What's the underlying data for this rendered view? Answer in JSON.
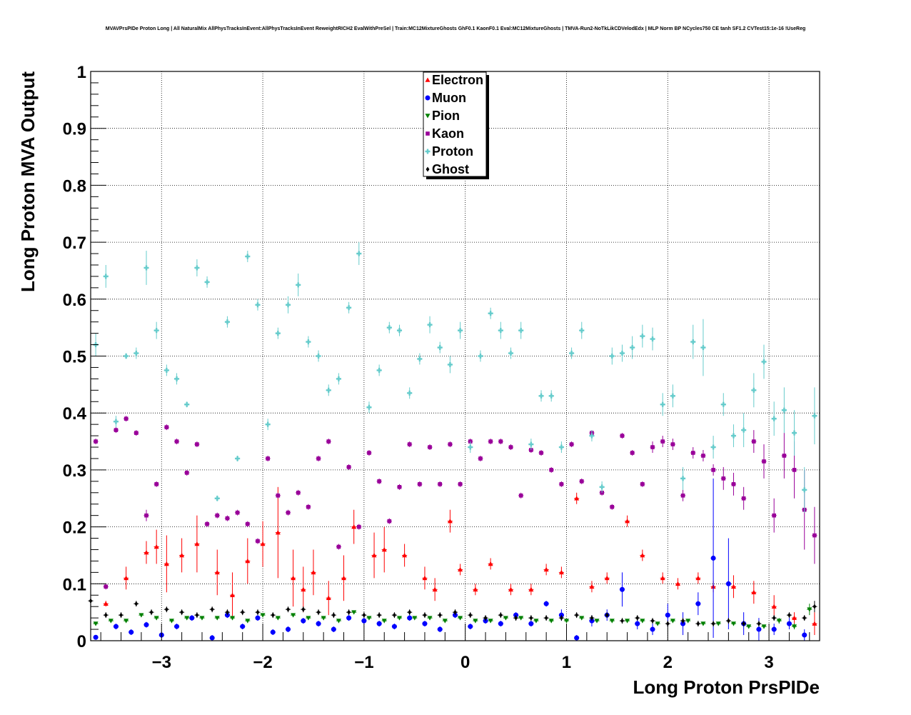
{
  "chart_data": {
    "type": "scatter",
    "title": "MVAVPrsPIDe Proton Long | All NaturalMix AllPhysTracksInEvent:AllPhysTracksInEvent ReweightRICH2 EvalWithPreSel | Train:MC12MixtureGhosts GhF0.1 KaonF0.1 Eval:MC12MixtureGhosts | TMVA-Run2-NoTkLikCDVelodEdx | MLP Norm BP NCycles750 CE tanh SF1.2 CVTest15:1e-16 !UseReg",
    "xlabel": "Long Proton PrsPIDe",
    "ylabel": "Long Proton MVA Output",
    "xlim": [
      -3.7,
      3.5
    ],
    "ylim": [
      0,
      1
    ],
    "grid": true,
    "legend_position": "top-center",
    "x_ticks": [
      -3,
      -2,
      -1,
      0,
      1,
      2,
      3
    ],
    "x_tick_labels": [
      "−3",
      "−2",
      "−1",
      "0",
      "1",
      "2",
      "3"
    ],
    "y_ticks": [
      0,
      0.1,
      0.2,
      0.3,
      0.4,
      0.5,
      0.6,
      0.7,
      0.8,
      0.9,
      1
    ],
    "y_tick_labels": [
      "0",
      "0.1",
      "0.2",
      "0.3",
      "0.4",
      "0.5",
      "0.6",
      "0.7",
      "0.8",
      "0.9",
      "1"
    ],
    "bin_half_width": 0.025,
    "series": [
      {
        "name": "Electron",
        "color": "#ff0000",
        "marker": "triangle-up",
        "x": [
          -3.55,
          -3.35,
          -3.15,
          -3.05,
          -2.95,
          -2.8,
          -2.65,
          -2.45,
          -2.3,
          -2.15,
          -2.0,
          -1.85,
          -1.7,
          -1.6,
          -1.5,
          -1.35,
          -1.2,
          -1.1,
          -0.9,
          -0.8,
          -0.6,
          -0.4,
          -0.3,
          -0.15,
          -0.05,
          0.1,
          0.25,
          0.45,
          0.65,
          0.8,
          0.95,
          1.1,
          1.25,
          1.4,
          1.6,
          1.75,
          1.95,
          2.1,
          2.3,
          2.45,
          2.65,
          2.85,
          3.05,
          3.25,
          3.45
        ],
        "y": [
          0.065,
          0.11,
          0.155,
          0.165,
          0.135,
          0.15,
          0.17,
          0.12,
          0.08,
          0.14,
          0.17,
          0.19,
          0.11,
          0.09,
          0.12,
          0.075,
          0.11,
          0.2,
          0.15,
          0.16,
          0.15,
          0.11,
          0.09,
          0.21,
          0.125,
          0.09,
          0.135,
          0.09,
          0.09,
          0.125,
          0.12,
          0.25,
          0.095,
          0.11,
          0.21,
          0.15,
          0.11,
          0.1,
          0.11,
          0.095,
          0.095,
          0.085,
          0.06,
          0.04,
          0.03
        ],
        "err": [
          0.005,
          0.02,
          0.02,
          0.03,
          0.05,
          0.03,
          0.05,
          0.04,
          0.04,
          0.04,
          0.04,
          0.08,
          0.05,
          0.04,
          0.04,
          0.03,
          0.04,
          0.03,
          0.04,
          0.04,
          0.02,
          0.02,
          0.02,
          0.02,
          0.01,
          0.01,
          0.01,
          0.01,
          0.01,
          0.01,
          0.01,
          0.01,
          0.01,
          0.01,
          0.01,
          0.01,
          0.01,
          0.01,
          0.01,
          0.01,
          0.02,
          0.02,
          0.02,
          0.01,
          0.02
        ]
      },
      {
        "name": "Muon",
        "color": "#0000ff",
        "marker": "circle",
        "x": [
          -3.65,
          -3.45,
          -3.3,
          -3.15,
          -3.0,
          -2.85,
          -2.7,
          -2.5,
          -2.35,
          -2.2,
          -2.05,
          -1.9,
          -1.75,
          -1.6,
          -1.45,
          -1.3,
          -1.15,
          -1.0,
          -0.85,
          -0.7,
          -0.55,
          -0.4,
          -0.25,
          -0.1,
          0.05,
          0.2,
          0.35,
          0.5,
          0.65,
          0.8,
          0.95,
          1.1,
          1.25,
          1.4,
          1.55,
          1.7,
          1.85,
          2.0,
          2.15,
          2.3,
          2.45,
          2.6,
          2.75,
          2.9,
          3.05,
          3.2,
          3.35
        ],
        "y": [
          0.006,
          0.025,
          0.015,
          0.028,
          0.01,
          0.025,
          0.04,
          0.005,
          0.045,
          0.025,
          0.04,
          0.015,
          0.02,
          0.035,
          0.03,
          0.02,
          0.04,
          0.035,
          0.03,
          0.025,
          0.04,
          0.03,
          0.02,
          0.045,
          0.025,
          0.035,
          0.03,
          0.045,
          0.03,
          0.065,
          0.045,
          0.005,
          0.035,
          0.045,
          0.09,
          0.03,
          0.02,
          0.045,
          0.03,
          0.065,
          0.145,
          0.1,
          0.03,
          0.02,
          0.02,
          0.03,
          0.01
        ],
        "err": [
          0.003,
          0.005,
          0.005,
          0.005,
          0.005,
          0.005,
          0.005,
          0.005,
          0.005,
          0.005,
          0.005,
          0.005,
          0.005,
          0.005,
          0.005,
          0.005,
          0.005,
          0.005,
          0.005,
          0.005,
          0.005,
          0.005,
          0.005,
          0.005,
          0.005,
          0.005,
          0.005,
          0.005,
          0.005,
          0.005,
          0.01,
          0.005,
          0.01,
          0.01,
          0.03,
          0.01,
          0.01,
          0.02,
          0.02,
          0.02,
          0.14,
          0.08,
          0.02,
          0.02,
          0.01,
          0.01,
          0.01
        ]
      },
      {
        "name": "Pion",
        "color": "#008000",
        "marker": "triangle-down",
        "x": [
          -3.65,
          -3.5,
          -3.35,
          -3.2,
          -3.05,
          -2.9,
          -2.75,
          -2.6,
          -2.45,
          -2.3,
          -2.15,
          -2.0,
          -1.85,
          -1.7,
          -1.55,
          -1.4,
          -1.25,
          -1.1,
          -0.95,
          -0.8,
          -0.65,
          -0.5,
          -0.35,
          -0.2,
          -0.05,
          0.1,
          0.25,
          0.4,
          0.55,
          0.7,
          0.85,
          1.0,
          1.15,
          1.3,
          1.45,
          1.6,
          1.75,
          1.9,
          2.05,
          2.2,
          2.35,
          2.5,
          2.65,
          2.8,
          2.95,
          3.1,
          3.25,
          3.4
        ],
        "y": [
          0.03,
          0.035,
          0.035,
          0.045,
          0.04,
          0.035,
          0.04,
          0.04,
          0.04,
          0.04,
          0.035,
          0.045,
          0.04,
          0.045,
          0.04,
          0.04,
          0.035,
          0.05,
          0.04,
          0.035,
          0.04,
          0.04,
          0.04,
          0.035,
          0.04,
          0.035,
          0.035,
          0.04,
          0.04,
          0.035,
          0.035,
          0.035,
          0.04,
          0.035,
          0.035,
          0.035,
          0.035,
          0.03,
          0.035,
          0.035,
          0.03,
          0.03,
          0.03,
          0.025,
          0.025,
          0.035,
          0.025,
          0.055
        ],
        "err": [
          0.003,
          0.003,
          0.003,
          0.003,
          0.003,
          0.003,
          0.003,
          0.003,
          0.003,
          0.003,
          0.003,
          0.003,
          0.003,
          0.003,
          0.003,
          0.003,
          0.003,
          0.003,
          0.003,
          0.003,
          0.003,
          0.003,
          0.003,
          0.003,
          0.003,
          0.003,
          0.003,
          0.003,
          0.003,
          0.003,
          0.003,
          0.003,
          0.003,
          0.003,
          0.003,
          0.003,
          0.003,
          0.003,
          0.003,
          0.003,
          0.003,
          0.003,
          0.003,
          0.003,
          0.003,
          0.005,
          0.005,
          0.01
        ]
      },
      {
        "name": "Kaon",
        "color": "#990099",
        "marker": "square",
        "x": [
          -3.65,
          -3.55,
          -3.45,
          -3.35,
          -3.25,
          -3.15,
          -3.05,
          -2.95,
          -2.85,
          -2.75,
          -2.65,
          -2.55,
          -2.45,
          -2.35,
          -2.25,
          -2.15,
          -2.05,
          -1.95,
          -1.85,
          -1.75,
          -1.65,
          -1.55,
          -1.45,
          -1.35,
          -1.25,
          -1.15,
          -1.05,
          -0.95,
          -0.85,
          -0.75,
          -0.65,
          -0.55,
          -0.45,
          -0.35,
          -0.25,
          -0.15,
          -0.05,
          0.05,
          0.15,
          0.25,
          0.35,
          0.45,
          0.55,
          0.65,
          0.75,
          0.85,
          0.95,
          1.05,
          1.15,
          1.25,
          1.35,
          1.45,
          1.55,
          1.65,
          1.75,
          1.85,
          1.95,
          2.05,
          2.15,
          2.25,
          2.35,
          2.45,
          2.55,
          2.65,
          2.75,
          2.85,
          2.95,
          3.05,
          3.15,
          3.25,
          3.35,
          3.45
        ],
        "y": [
          0.35,
          0.095,
          0.37,
          0.39,
          0.365,
          0.22,
          0.275,
          0.375,
          0.35,
          0.295,
          0.345,
          0.205,
          0.22,
          0.215,
          0.225,
          0.205,
          0.175,
          0.32,
          0.255,
          0.225,
          0.26,
          0.235,
          0.32,
          0.35,
          0.165,
          0.305,
          0.2,
          0.33,
          0.28,
          0.21,
          0.27,
          0.345,
          0.275,
          0.34,
          0.275,
          0.345,
          0.275,
          0.35,
          0.32,
          0.35,
          0.35,
          0.34,
          0.255,
          0.335,
          0.33,
          0.3,
          0.275,
          0.345,
          0.28,
          0.365,
          0.26,
          0.235,
          0.36,
          0.33,
          0.275,
          0.34,
          0.35,
          0.345,
          0.255,
          0.33,
          0.325,
          0.3,
          0.285,
          0.275,
          0.25,
          0.35,
          0.315,
          0.22,
          0.325,
          0.3,
          0.23,
          0.185
        ],
        "err": [
          0.005,
          0.005,
          0.005,
          0.005,
          0.005,
          0.01,
          0.005,
          0.005,
          0.005,
          0.005,
          0.005,
          0.005,
          0.005,
          0.005,
          0.005,
          0.005,
          0.005,
          0.005,
          0.005,
          0.005,
          0.005,
          0.005,
          0.005,
          0.005,
          0.005,
          0.005,
          0.005,
          0.005,
          0.005,
          0.005,
          0.005,
          0.005,
          0.005,
          0.005,
          0.005,
          0.005,
          0.005,
          0.005,
          0.005,
          0.005,
          0.005,
          0.005,
          0.005,
          0.005,
          0.005,
          0.005,
          0.005,
          0.005,
          0.005,
          0.005,
          0.005,
          0.005,
          0.005,
          0.005,
          0.005,
          0.01,
          0.01,
          0.01,
          0.01,
          0.01,
          0.01,
          0.01,
          0.02,
          0.02,
          0.02,
          0.02,
          0.03,
          0.03,
          0.04,
          0.05,
          0.07,
          0.05
        ]
      },
      {
        "name": "Proton",
        "color": "#66cccc",
        "marker": "cross",
        "x": [
          -3.65,
          -3.55,
          -3.45,
          -3.35,
          -3.25,
          -3.15,
          -3.05,
          -2.95,
          -2.85,
          -2.75,
          -2.65,
          -2.55,
          -2.45,
          -2.35,
          -2.25,
          -2.15,
          -2.05,
          -1.95,
          -1.85,
          -1.75,
          -1.65,
          -1.55,
          -1.45,
          -1.35,
          -1.25,
          -1.15,
          -1.05,
          -0.95,
          -0.85,
          -0.75,
          -0.65,
          -0.55,
          -0.45,
          -0.35,
          -0.25,
          -0.15,
          -0.05,
          0.05,
          0.15,
          0.25,
          0.35,
          0.45,
          0.55,
          0.65,
          0.75,
          0.85,
          0.95,
          1.05,
          1.15,
          1.25,
          1.35,
          1.45,
          1.55,
          1.65,
          1.75,
          1.85,
          1.95,
          2.05,
          2.15,
          2.25,
          2.35,
          2.45,
          2.55,
          2.65,
          2.75,
          2.85,
          2.95,
          3.05,
          3.15,
          3.25,
          3.35,
          3.45
        ],
        "y": [
          0.52,
          0.64,
          0.385,
          0.5,
          0.505,
          0.655,
          0.545,
          0.475,
          0.46,
          0.415,
          0.655,
          0.63,
          0.25,
          0.56,
          0.32,
          0.675,
          0.59,
          0.38,
          0.54,
          0.59,
          0.625,
          0.525,
          0.5,
          0.44,
          0.46,
          0.585,
          0.68,
          0.41,
          0.475,
          0.55,
          0.545,
          0.435,
          0.495,
          0.555,
          0.515,
          0.485,
          0.545,
          0.34,
          0.5,
          0.575,
          0.545,
          0.505,
          0.545,
          0.345,
          0.43,
          0.43,
          0.34,
          0.505,
          0.545,
          0.36,
          0.27,
          0.5,
          0.505,
          0.515,
          0.535,
          0.53,
          0.415,
          0.43,
          0.285,
          0.525,
          0.515,
          0.34,
          0.415,
          0.36,
          0.37,
          0.44,
          0.49,
          0.39,
          0.405,
          0.365,
          0.265,
          0.395
        ],
        "err": [
          0.02,
          0.02,
          0.01,
          0.005,
          0.01,
          0.03,
          0.015,
          0.01,
          0.01,
          0.005,
          0.015,
          0.01,
          0.005,
          0.01,
          0.005,
          0.01,
          0.01,
          0.01,
          0.01,
          0.015,
          0.02,
          0.01,
          0.01,
          0.01,
          0.01,
          0.01,
          0.02,
          0.01,
          0.01,
          0.01,
          0.01,
          0.01,
          0.01,
          0.015,
          0.01,
          0.015,
          0.015,
          0.01,
          0.01,
          0.01,
          0.015,
          0.01,
          0.015,
          0.01,
          0.01,
          0.01,
          0.01,
          0.01,
          0.015,
          0.01,
          0.01,
          0.015,
          0.015,
          0.02,
          0.02,
          0.02,
          0.02,
          0.02,
          0.02,
          0.03,
          0.05,
          0.02,
          0.02,
          0.02,
          0.03,
          0.03,
          0.03,
          0.03,
          0.04,
          0.04,
          0.04,
          0.05
        ]
      },
      {
        "name": "Ghost",
        "color": "#000000",
        "marker": "diamond",
        "x": [
          -3.7,
          -3.55,
          -3.4,
          -3.25,
          -3.1,
          -2.95,
          -2.8,
          -2.65,
          -2.5,
          -2.35,
          -2.2,
          -2.05,
          -1.9,
          -1.75,
          -1.6,
          -1.45,
          -1.3,
          -1.15,
          -1.0,
          -0.85,
          -0.7,
          -0.55,
          -0.4,
          -0.25,
          -0.1,
          0.05,
          0.2,
          0.35,
          0.5,
          0.65,
          0.8,
          0.95,
          1.1,
          1.25,
          1.4,
          1.55,
          1.7,
          1.85,
          2.0,
          2.15,
          2.3,
          2.45,
          2.6,
          2.75,
          2.9,
          3.05,
          3.2,
          3.35,
          3.45
        ],
        "y": [
          0.07,
          0.045,
          0.045,
          0.065,
          0.05,
          0.055,
          0.05,
          0.045,
          0.055,
          0.05,
          0.05,
          0.05,
          0.045,
          0.055,
          0.055,
          0.05,
          0.045,
          0.05,
          0.045,
          0.045,
          0.045,
          0.05,
          0.045,
          0.045,
          0.05,
          0.045,
          0.04,
          0.045,
          0.04,
          0.04,
          0.04,
          0.04,
          0.045,
          0.04,
          0.045,
          0.035,
          0.04,
          0.035,
          0.03,
          0.035,
          0.03,
          0.03,
          0.035,
          0.03,
          0.03,
          0.04,
          0.045,
          0.04,
          0.06
        ],
        "err": [
          0.005,
          0.005,
          0.005,
          0.005,
          0.005,
          0.005,
          0.005,
          0.005,
          0.005,
          0.005,
          0.005,
          0.005,
          0.005,
          0.005,
          0.005,
          0.005,
          0.005,
          0.005,
          0.005,
          0.005,
          0.005,
          0.005,
          0.005,
          0.005,
          0.005,
          0.005,
          0.005,
          0.005,
          0.005,
          0.005,
          0.005,
          0.005,
          0.005,
          0.005,
          0.005,
          0.005,
          0.005,
          0.005,
          0.005,
          0.005,
          0.005,
          0.005,
          0.005,
          0.005,
          0.005,
          0.005,
          0.005,
          0.005,
          0.01
        ]
      }
    ]
  }
}
